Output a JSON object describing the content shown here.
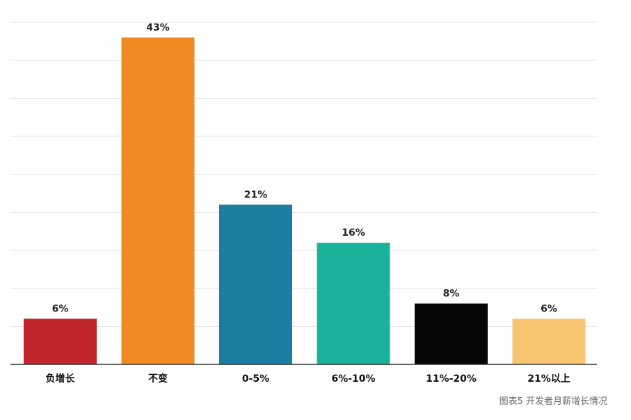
{
  "chart_data": {
    "type": "bar",
    "categories": [
      "负增长",
      "不变",
      "0-5%",
      "6%-10%",
      "11%-20%",
      "21%以上"
    ],
    "values": [
      6,
      43,
      21,
      16,
      8,
      6
    ],
    "value_labels": [
      "6%",
      "43%",
      "21%",
      "16%",
      "8%",
      "6%"
    ],
    "colors": [
      "#c0272d",
      "#ef8b22",
      "#1b7fa1",
      "#19b39b",
      "#060606",
      "#f7c472"
    ],
    "ylim": [
      0,
      45
    ],
    "grid": true,
    "caption": "图表5 开发者月薪增长情况"
  }
}
